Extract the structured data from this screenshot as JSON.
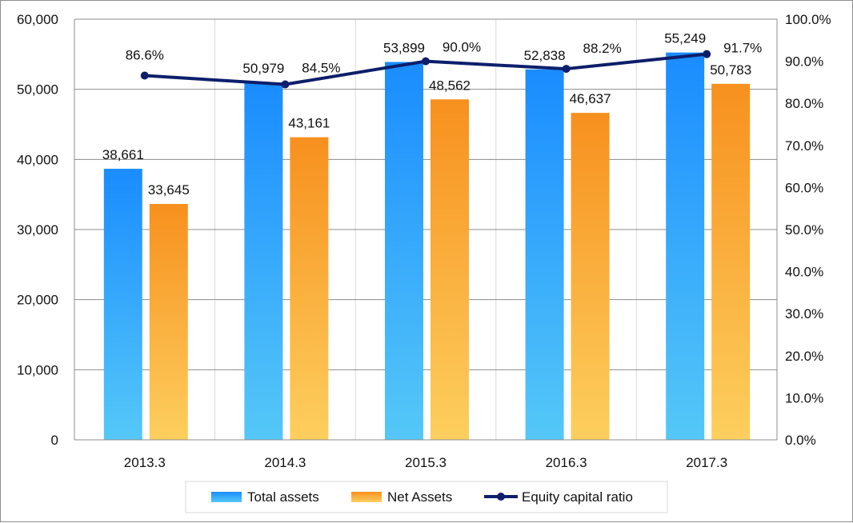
{
  "chart_data": {
    "type": "bar",
    "categories": [
      "2013.3",
      "2014.3",
      "2015.3",
      "2016.3",
      "2017.3"
    ],
    "series": [
      {
        "name": "Total assets",
        "type": "bar",
        "axis": "left",
        "color": "#1e90ff",
        "values": [
          38661,
          50979,
          53899,
          52838,
          55249
        ],
        "labels": [
          "38,661",
          "50,979",
          "53,899",
          "52,838",
          "55,249"
        ]
      },
      {
        "name": "Net Assets",
        "type": "bar",
        "axis": "left",
        "color": "#f7941d",
        "values": [
          33645,
          43161,
          48562,
          46637,
          50783
        ],
        "labels": [
          "33,645",
          "43,161",
          "48,562",
          "46,637",
          "50,783"
        ]
      },
      {
        "name": "Equity capital ratio",
        "type": "line",
        "axis": "right",
        "color": "#0d1f6b",
        "values": [
          86.6,
          84.5,
          90.0,
          88.2,
          91.7
        ],
        "labels": [
          "86.6%",
          "84.5%",
          "90.0%",
          "88.2%",
          "91.7%"
        ]
      }
    ],
    "y_left": {
      "ylim": [
        0,
        60000
      ],
      "ticks": [
        0,
        10000,
        20000,
        30000,
        40000,
        50000,
        60000
      ],
      "tick_labels": [
        "0",
        "10,000",
        "20,000",
        "30,000",
        "40,000",
        "50,000",
        "60,000"
      ]
    },
    "y_right": {
      "ylim": [
        0,
        100
      ],
      "ticks": [
        0,
        10,
        20,
        30,
        40,
        50,
        60,
        70,
        80,
        90,
        100
      ],
      "tick_labels": [
        "0.0%",
        "10.0%",
        "20.0%",
        "30.0%",
        "40.0%",
        "50.0%",
        "60.0%",
        "70.0%",
        "80.0%",
        "90.0%",
        "100.0%"
      ]
    },
    "grid": true,
    "legend": "bottom",
    "title": "",
    "xlabel": "",
    "ylabel": ""
  }
}
